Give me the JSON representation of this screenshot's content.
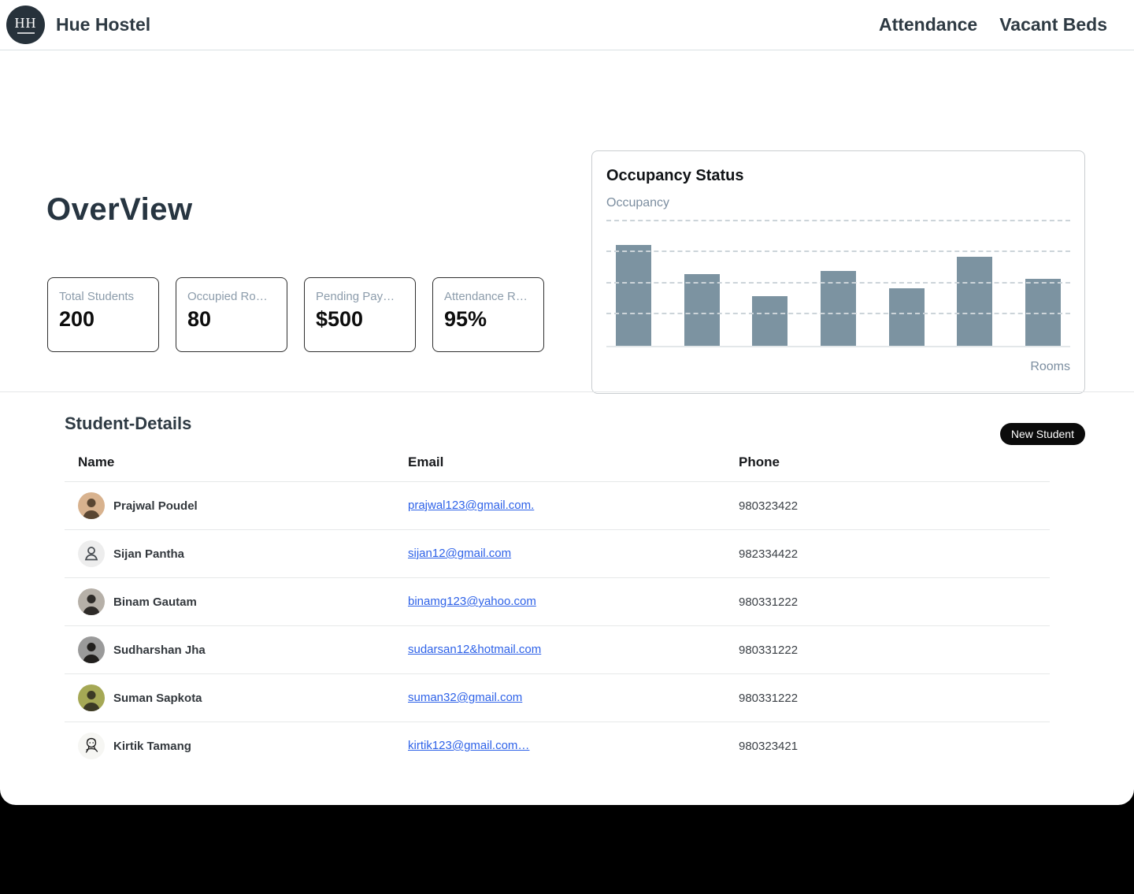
{
  "navbar": {
    "logo_monogram": "HH",
    "brand": "Hue Hostel",
    "links": [
      {
        "label": "Attendance"
      },
      {
        "label": "Vacant Beds"
      }
    ]
  },
  "overview": {
    "title": "OverView",
    "stats": [
      {
        "label": "Total Students",
        "value": "200"
      },
      {
        "label": "Occupied Ro…",
        "value": "80"
      },
      {
        "label": "Pending Pay…",
        "value": "$500"
      },
      {
        "label": "Attendance R…",
        "value": "95%"
      }
    ]
  },
  "chart_data": {
    "type": "bar",
    "title": "Occupancy Status",
    "ylabel": "Occupancy",
    "xlabel": "Rooms",
    "categories": [
      "",
      "",
      "",
      "",
      "",
      "",
      ""
    ],
    "values": [
      65,
      46,
      32,
      48,
      37,
      57,
      43
    ],
    "ylim": [
      0,
      85
    ],
    "gridline_values": [
      20,
      40,
      60,
      80
    ],
    "grid_style": "dashed-horizontal",
    "bar_color": "#7c93a1",
    "legend": "none"
  },
  "students": {
    "title": "Student-Details",
    "new_student_button": "New Student",
    "columns": [
      "Name",
      "Email",
      "Phone"
    ],
    "rows": [
      {
        "name": "Prajwal Poudel",
        "email": "prajwal123@gmail.com.",
        "phone": "980323422",
        "avatar": {
          "kind": "photo",
          "bg": "#d8b28e",
          "fg": "#5a4632"
        }
      },
      {
        "name": "Sijan Pantha",
        "email": "sijan12@gmail.com",
        "phone": "982334422",
        "avatar": {
          "kind": "icon",
          "bg": "#ededed",
          "fg": "#4a4f54"
        }
      },
      {
        "name": "Binam Gautam",
        "email": "binamg123@yahoo.com",
        "phone": "980331222",
        "avatar": {
          "kind": "photo",
          "bg": "#b6b0a8",
          "fg": "#2e2b28"
        }
      },
      {
        "name": "Sudharshan Jha",
        "email": "sudarsan12&hotmail.com",
        "phone": "980331222",
        "avatar": {
          "kind": "photo",
          "bg": "#9a9a9a",
          "fg": "#211f1d"
        }
      },
      {
        "name": "Suman Sapkota",
        "email": "suman32@gmail.com",
        "phone": "980331222",
        "avatar": {
          "kind": "photo",
          "bg": "#a5a855",
          "fg": "#3c3a25"
        }
      },
      {
        "name": "Kirtik Tamang",
        "email": "kirtik123@gmail.com…",
        "phone": "980323421",
        "avatar": {
          "kind": "doodle",
          "bg": "#f6f6f3",
          "fg": "#1c1c1c"
        }
      }
    ]
  }
}
